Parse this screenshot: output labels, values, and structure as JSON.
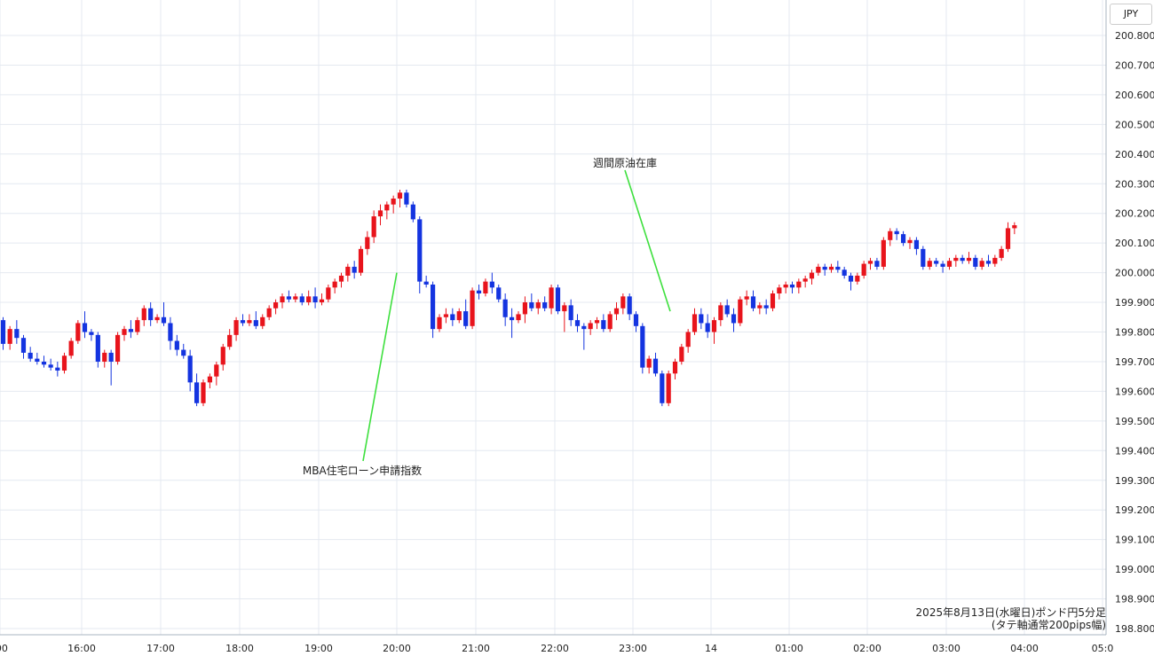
{
  "currency_button": "JPY",
  "caption": {
    "line1": "2025年8月13日(水曜日)ポンド円5分足",
    "line2": "(タテ軸通常200pips幅)"
  },
  "chart_data": {
    "type": "candlestick",
    "title": "",
    "y_range": [
      198.75,
      200.88
    ],
    "y_ticks": [
      "198.800",
      "198.900",
      "199.000",
      "199.100",
      "199.200",
      "199.300",
      "199.400",
      "199.500",
      "199.600",
      "199.700",
      "199.800",
      "199.900",
      "200.000",
      "200.100",
      "200.200",
      "200.300",
      "200.400",
      "200.500",
      "200.600",
      "200.700",
      "200.800"
    ],
    "x_ticks": [
      ":00",
      "16:00",
      "17:00",
      "18:00",
      "19:00",
      "20:00",
      "21:00",
      "22:00",
      "23:00",
      "14",
      "01:00",
      "02:00",
      "03:00",
      "04:00",
      "05:0"
    ],
    "grid": true,
    "colors": {
      "up": "#e8141c",
      "down": "#1434e0",
      "grid": "#e4e9f0",
      "annotation_line": "#3ee03e",
      "axis": "#aab4c0"
    },
    "annotations": [
      {
        "label": "MBA住宅ローン申請指数",
        "time": "20:00",
        "price": 200.0
      },
      {
        "label": "週間原油在庫",
        "time": "23:30",
        "price": 199.87
      }
    ],
    "series": [
      {
        "columns": [
          "open",
          "high",
          "low",
          "close"
        ],
        "start_time": "15:00",
        "interval_minutes": 5,
        "candles": [
          [
            199.84,
            199.85,
            199.74,
            199.76
          ],
          [
            199.76,
            199.82,
            199.74,
            199.81
          ],
          [
            199.81,
            199.84,
            199.76,
            199.78
          ],
          [
            199.78,
            199.79,
            199.71,
            199.73
          ],
          [
            199.73,
            199.75,
            199.7,
            199.71
          ],
          [
            199.71,
            199.73,
            199.69,
            199.7
          ],
          [
            199.7,
            199.72,
            199.68,
            199.69
          ],
          [
            199.69,
            199.71,
            199.67,
            199.68
          ],
          [
            199.68,
            199.7,
            199.65,
            199.67
          ],
          [
            199.67,
            199.73,
            199.66,
            199.72
          ],
          [
            199.72,
            199.78,
            199.71,
            199.77
          ],
          [
            199.77,
            199.84,
            199.76,
            199.83
          ],
          [
            199.83,
            199.87,
            199.78,
            199.8
          ],
          [
            199.8,
            199.81,
            199.77,
            199.79
          ],
          [
            199.79,
            199.8,
            199.68,
            199.7
          ],
          [
            199.7,
            199.74,
            199.68,
            199.73
          ],
          [
            199.73,
            199.74,
            199.62,
            199.7
          ],
          [
            199.7,
            199.8,
            199.69,
            199.79
          ],
          [
            199.79,
            199.82,
            199.77,
            199.81
          ],
          [
            199.81,
            199.84,
            199.78,
            199.8
          ],
          [
            199.8,
            199.85,
            199.79,
            199.84
          ],
          [
            199.84,
            199.89,
            199.82,
            199.88
          ],
          [
            199.88,
            199.9,
            199.82,
            199.84
          ],
          [
            199.84,
            199.86,
            199.83,
            199.85
          ],
          [
            199.85,
            199.9,
            199.82,
            199.83
          ],
          [
            199.83,
            199.85,
            199.74,
            199.77
          ],
          [
            199.77,
            199.79,
            199.72,
            199.74
          ],
          [
            199.74,
            199.76,
            199.71,
            199.72
          ],
          [
            199.72,
            199.74,
            199.6,
            199.63
          ],
          [
            199.63,
            199.66,
            199.55,
            199.56
          ],
          [
            199.56,
            199.64,
            199.55,
            199.63
          ],
          [
            199.63,
            199.66,
            199.61,
            199.65
          ],
          [
            199.65,
            199.7,
            199.62,
            199.69
          ],
          [
            199.69,
            199.76,
            199.67,
            199.75
          ],
          [
            199.75,
            199.81,
            199.74,
            199.79
          ],
          [
            199.79,
            199.85,
            199.77,
            199.84
          ],
          [
            199.84,
            199.86,
            199.82,
            199.83
          ],
          [
            199.83,
            199.86,
            199.82,
            199.84
          ],
          [
            199.84,
            199.87,
            199.81,
            199.82
          ],
          [
            199.82,
            199.86,
            199.81,
            199.85
          ],
          [
            199.85,
            199.89,
            199.84,
            199.88
          ],
          [
            199.88,
            199.91,
            199.86,
            199.9
          ],
          [
            199.9,
            199.93,
            199.88,
            199.92
          ],
          [
            199.92,
            199.94,
            199.9,
            199.91
          ],
          [
            199.91,
            199.93,
            199.9,
            199.92
          ],
          [
            199.92,
            199.93,
            199.89,
            199.9
          ],
          [
            199.9,
            199.94,
            199.89,
            199.92
          ],
          [
            199.92,
            199.95,
            199.88,
            199.9
          ],
          [
            199.9,
            199.93,
            199.89,
            199.91
          ],
          [
            199.91,
            199.96,
            199.9,
            199.95
          ],
          [
            199.95,
            199.98,
            199.93,
            199.97
          ],
          [
            199.97,
            200.0,
            199.95,
            199.99
          ],
          [
            199.99,
            200.03,
            199.97,
            200.02
          ],
          [
            200.02,
            200.04,
            199.98,
            200.0
          ],
          [
            200.0,
            200.09,
            199.99,
            200.08
          ],
          [
            200.08,
            200.14,
            200.06,
            200.12
          ],
          [
            200.12,
            200.21,
            200.1,
            200.19
          ],
          [
            200.19,
            200.23,
            200.16,
            200.21
          ],
          [
            200.21,
            200.24,
            200.18,
            200.23
          ],
          [
            200.23,
            200.26,
            200.2,
            200.25
          ],
          [
            200.25,
            200.28,
            200.22,
            200.27
          ],
          [
            200.27,
            200.28,
            200.22,
            200.23
          ],
          [
            200.23,
            200.24,
            200.17,
            200.18
          ],
          [
            200.18,
            200.19,
            199.93,
            199.97
          ],
          [
            199.97,
            199.99,
            199.95,
            199.96
          ],
          [
            199.96,
            199.97,
            199.78,
            199.81
          ],
          [
            199.81,
            199.86,
            199.8,
            199.85
          ],
          [
            199.85,
            199.88,
            199.83,
            199.86
          ],
          [
            199.86,
            199.88,
            199.82,
            199.84
          ],
          [
            199.84,
            199.88,
            199.83,
            199.87
          ],
          [
            199.87,
            199.91,
            199.81,
            199.82
          ],
          [
            199.82,
            199.95,
            199.81,
            199.94
          ],
          [
            199.94,
            199.96,
            199.91,
            199.93
          ],
          [
            199.93,
            199.98,
            199.92,
            199.97
          ],
          [
            199.97,
            200.0,
            199.93,
            199.95
          ],
          [
            199.95,
            199.96,
            199.9,
            199.91
          ],
          [
            199.91,
            199.93,
            199.82,
            199.85
          ],
          [
            199.85,
            199.88,
            199.78,
            199.84
          ],
          [
            199.84,
            199.87,
            199.83,
            199.86
          ],
          [
            199.86,
            199.92,
            199.83,
            199.9
          ],
          [
            199.9,
            199.93,
            199.87,
            199.88
          ],
          [
            199.88,
            199.91,
            199.86,
            199.9
          ],
          [
            199.9,
            199.92,
            199.87,
            199.88
          ],
          [
            199.88,
            199.96,
            199.86,
            199.95
          ],
          [
            199.95,
            199.96,
            199.86,
            199.87
          ],
          [
            199.87,
            199.9,
            199.8,
            199.89
          ],
          [
            199.89,
            199.91,
            199.82,
            199.84
          ],
          [
            199.84,
            199.86,
            199.8,
            199.82
          ],
          [
            199.82,
            199.83,
            199.74,
            199.81
          ],
          [
            199.81,
            199.84,
            199.79,
            199.83
          ],
          [
            199.83,
            199.85,
            199.81,
            199.84
          ],
          [
            199.84,
            199.86,
            199.8,
            199.81
          ],
          [
            199.81,
            199.87,
            199.8,
            199.86
          ],
          [
            199.86,
            199.9,
            199.84,
            199.88
          ],
          [
            199.88,
            199.93,
            199.86,
            199.92
          ],
          [
            199.92,
            199.93,
            199.84,
            199.86
          ],
          [
            199.86,
            199.87,
            199.8,
            199.82
          ],
          [
            199.82,
            199.83,
            199.66,
            199.68
          ],
          [
            199.68,
            199.72,
            199.66,
            199.71
          ],
          [
            199.71,
            199.73,
            199.65,
            199.66
          ],
          [
            199.66,
            199.67,
            199.55,
            199.56
          ],
          [
            199.56,
            199.67,
            199.55,
            199.66
          ],
          [
            199.66,
            199.71,
            199.64,
            199.7
          ],
          [
            199.7,
            199.76,
            199.69,
            199.75
          ],
          [
            199.75,
            199.81,
            199.73,
            199.8
          ],
          [
            199.8,
            199.88,
            199.79,
            199.86
          ],
          [
            199.86,
            199.88,
            199.81,
            199.83
          ],
          [
            199.83,
            199.86,
            199.78,
            199.8
          ],
          [
            199.8,
            199.85,
            199.76,
            199.84
          ],
          [
            199.84,
            199.9,
            199.82,
            199.89
          ],
          [
            199.89,
            199.91,
            199.85,
            199.86
          ],
          [
            199.86,
            199.88,
            199.8,
            199.83
          ],
          [
            199.83,
            199.92,
            199.82,
            199.91
          ],
          [
            199.91,
            199.94,
            199.89,
            199.92
          ],
          [
            199.92,
            199.94,
            199.87,
            199.88
          ],
          [
            199.88,
            199.9,
            199.86,
            199.89
          ],
          [
            199.89,
            199.91,
            199.86,
            199.88
          ],
          [
            199.88,
            199.94,
            199.87,
            199.93
          ],
          [
            199.93,
            199.96,
            199.91,
            199.95
          ],
          [
            199.95,
            199.97,
            199.93,
            199.96
          ],
          [
            199.96,
            199.97,
            199.93,
            199.95
          ],
          [
            199.95,
            199.98,
            199.93,
            199.97
          ],
          [
            199.97,
            199.99,
            199.95,
            199.98
          ],
          [
            199.98,
            200.01,
            199.96,
            200.0
          ],
          [
            200.0,
            200.03,
            199.99,
            200.02
          ],
          [
            200.02,
            200.03,
            199.99,
            200.01
          ],
          [
            200.01,
            200.03,
            200.0,
            200.02
          ],
          [
            200.02,
            200.04,
            200.0,
            200.01
          ],
          [
            200.01,
            200.02,
            199.98,
            199.99
          ],
          [
            199.99,
            200.0,
            199.94,
            199.97
          ],
          [
            199.97,
            200.0,
            199.96,
            199.99
          ],
          [
            199.99,
            200.04,
            199.98,
            200.03
          ],
          [
            200.03,
            200.05,
            200.01,
            200.04
          ],
          [
            200.04,
            200.05,
            200.01,
            200.02
          ],
          [
            200.02,
            200.12,
            200.01,
            200.11
          ],
          [
            200.11,
            200.15,
            200.09,
            200.14
          ],
          [
            200.14,
            200.15,
            200.11,
            200.13
          ],
          [
            200.13,
            200.14,
            200.09,
            200.1
          ],
          [
            200.1,
            200.12,
            200.08,
            200.11
          ],
          [
            200.11,
            200.12,
            200.06,
            200.08
          ],
          [
            200.08,
            200.09,
            200.01,
            200.02
          ],
          [
            200.02,
            200.05,
            200.01,
            200.04
          ],
          [
            200.04,
            200.05,
            200.02,
            200.03
          ],
          [
            200.03,
            200.04,
            200.0,
            200.02
          ],
          [
            200.02,
            200.05,
            200.01,
            200.04
          ],
          [
            200.04,
            200.06,
            200.02,
            200.05
          ],
          [
            200.05,
            200.06,
            200.03,
            200.04
          ],
          [
            200.04,
            200.07,
            200.03,
            200.05
          ],
          [
            200.05,
            200.06,
            200.01,
            200.02
          ],
          [
            200.02,
            200.05,
            200.01,
            200.04
          ],
          [
            200.04,
            200.06,
            200.02,
            200.03
          ],
          [
            200.03,
            200.06,
            200.02,
            200.05
          ],
          [
            200.05,
            200.09,
            200.04,
            200.08
          ],
          [
            200.08,
            200.17,
            200.07,
            200.15
          ],
          [
            200.15,
            200.17,
            200.13,
            200.16
          ]
        ]
      }
    ]
  }
}
